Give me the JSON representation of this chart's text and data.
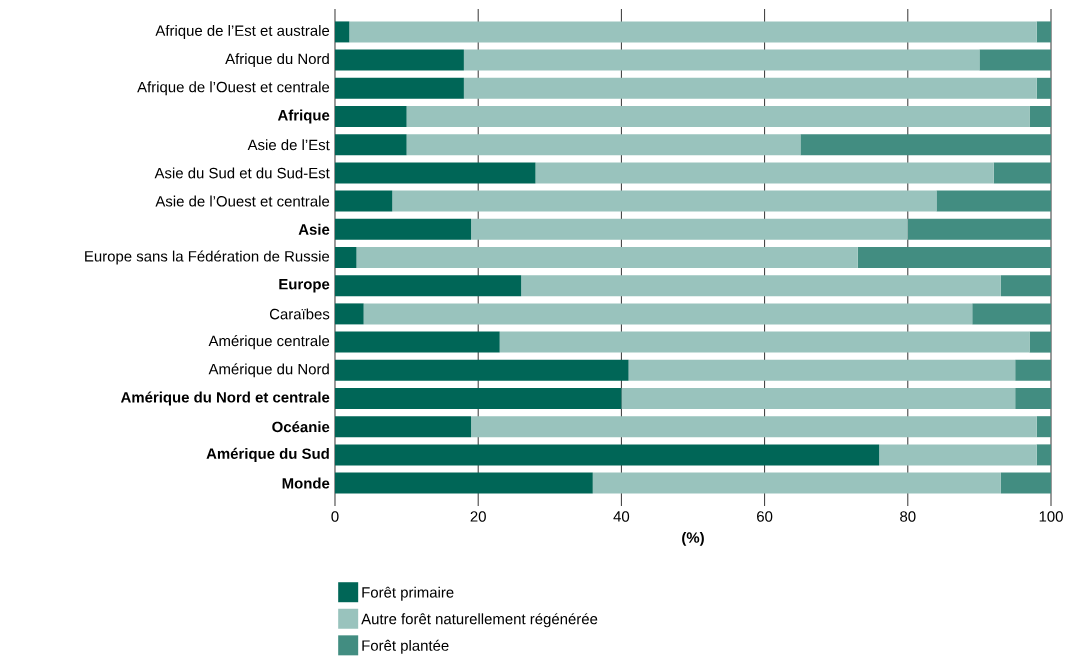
{
  "chart_data": {
    "type": "bar",
    "orientation": "horizontal",
    "stacked": true,
    "xlabel": "**(%)**",
    "categories": [
      "Afrique de l’Est et australe",
      "Afrique du Nord",
      "Afrique de l’Ouest et centrale",
      "**Afrique**",
      "Asie de l’Est",
      "Asie du Sud et du Sud-Est",
      "Asie de l’Ouest et centrale",
      "**Asie**",
      "Europe sans la Fédération de Russie",
      "**Europe**",
      "Caraïbes",
      "Amérique centrale",
      "Amérique du Nord",
      "**Amérique du Nord et centrale**",
      "**Océanie**",
      "**Amérique du Sud**",
      "**Monde**"
    ],
    "series": [
      {
        "name": "Forêt primaire",
        "color": "#006657",
        "values": [
          2,
          18,
          18,
          10,
          10,
          28,
          8,
          19,
          3,
          26,
          4,
          23,
          41,
          40,
          19,
          76,
          36
        ]
      },
      {
        "name": "Autre forêt naturellement régénérée",
        "color": "#99c3bd",
        "values": [
          96,
          72,
          80,
          87,
          55,
          64,
          76,
          61,
          70,
          67,
          85,
          74,
          54,
          55,
          79,
          22,
          57
        ]
      },
      {
        "name": "Forêt plantée",
        "color": "#428d81",
        "values": [
          2,
          10,
          2,
          3,
          35,
          8,
          16,
          20,
          27,
          7,
          11,
          3,
          5,
          5,
          2,
          2,
          7
        ]
      }
    ],
    "xlim": [
      0,
      100
    ],
    "xticks": [
      0,
      20,
      40,
      60,
      80,
      100
    ],
    "grid": "x",
    "legend": "bottom"
  }
}
